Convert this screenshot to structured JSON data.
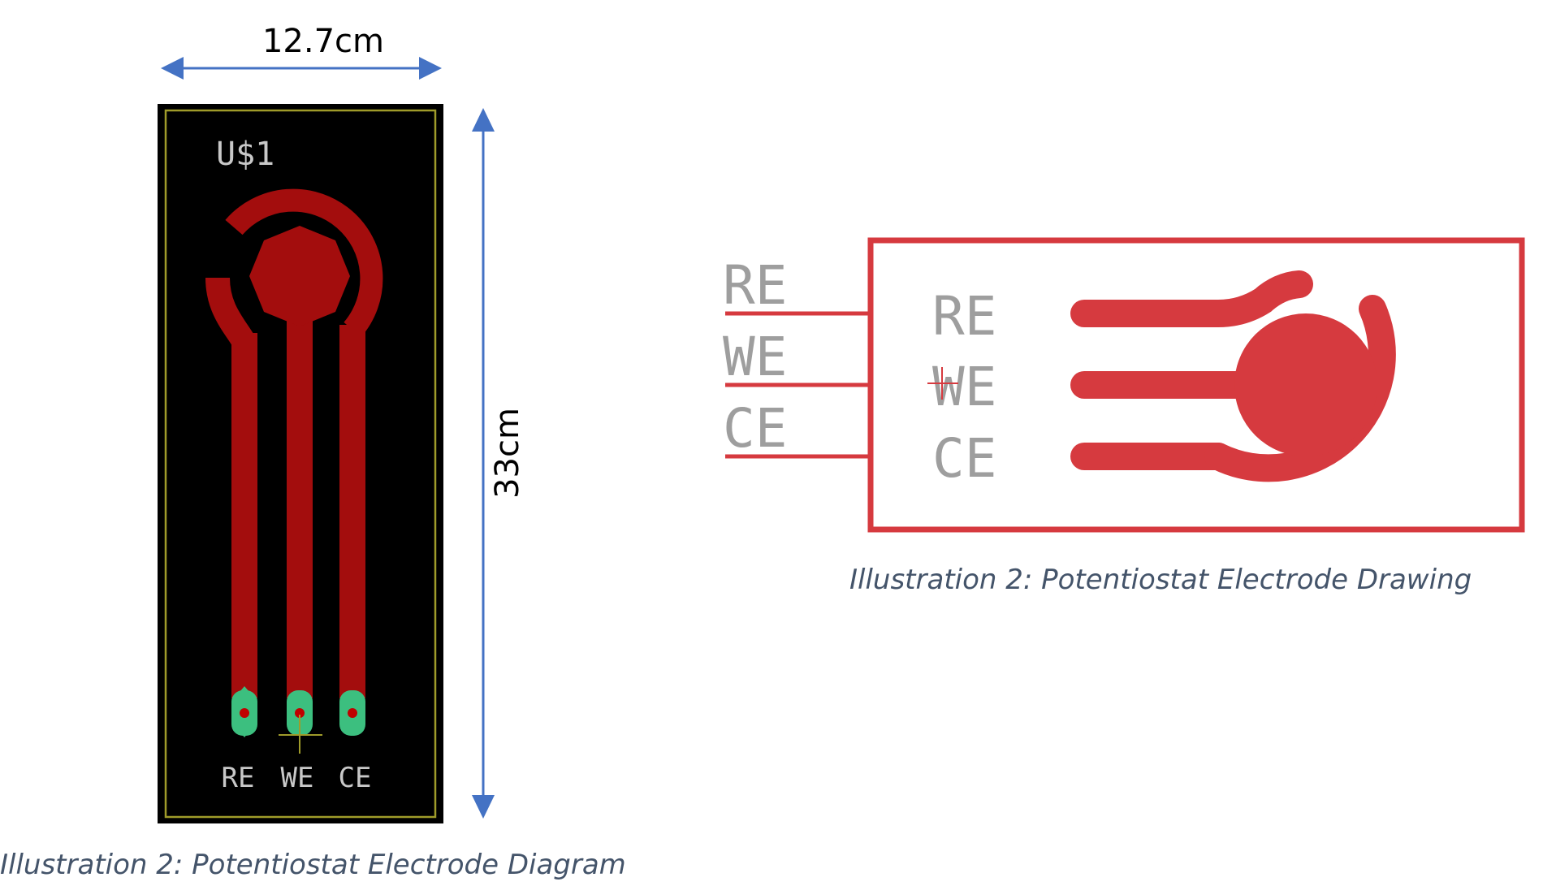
{
  "left_diagram": {
    "width_label": "12.7cm",
    "height_label": "33cm",
    "board_ref_label": "U$1",
    "pad_labels": [
      "RE",
      "WE",
      "CE"
    ],
    "caption": "Illustration 2: Potentiostat Electrode Diagram"
  },
  "right_diagram": {
    "pin_labels": [
      "RE",
      "WE",
      "CE"
    ],
    "inner_labels": [
      "RE",
      "WE",
      "CE"
    ],
    "caption": "Illustration 2: Potentiostat Electrode Drawing"
  },
  "colors": {
    "arrow_blue": "#4472c4",
    "board_black": "#000000",
    "board_outline": "#9f9b2a",
    "trace_red": "#a30d0d",
    "pad_green": "#3cbf7f",
    "schematic_red": "#d63a3f",
    "label_grey": "#9e9e9e",
    "caption_slate": "#44546a"
  }
}
